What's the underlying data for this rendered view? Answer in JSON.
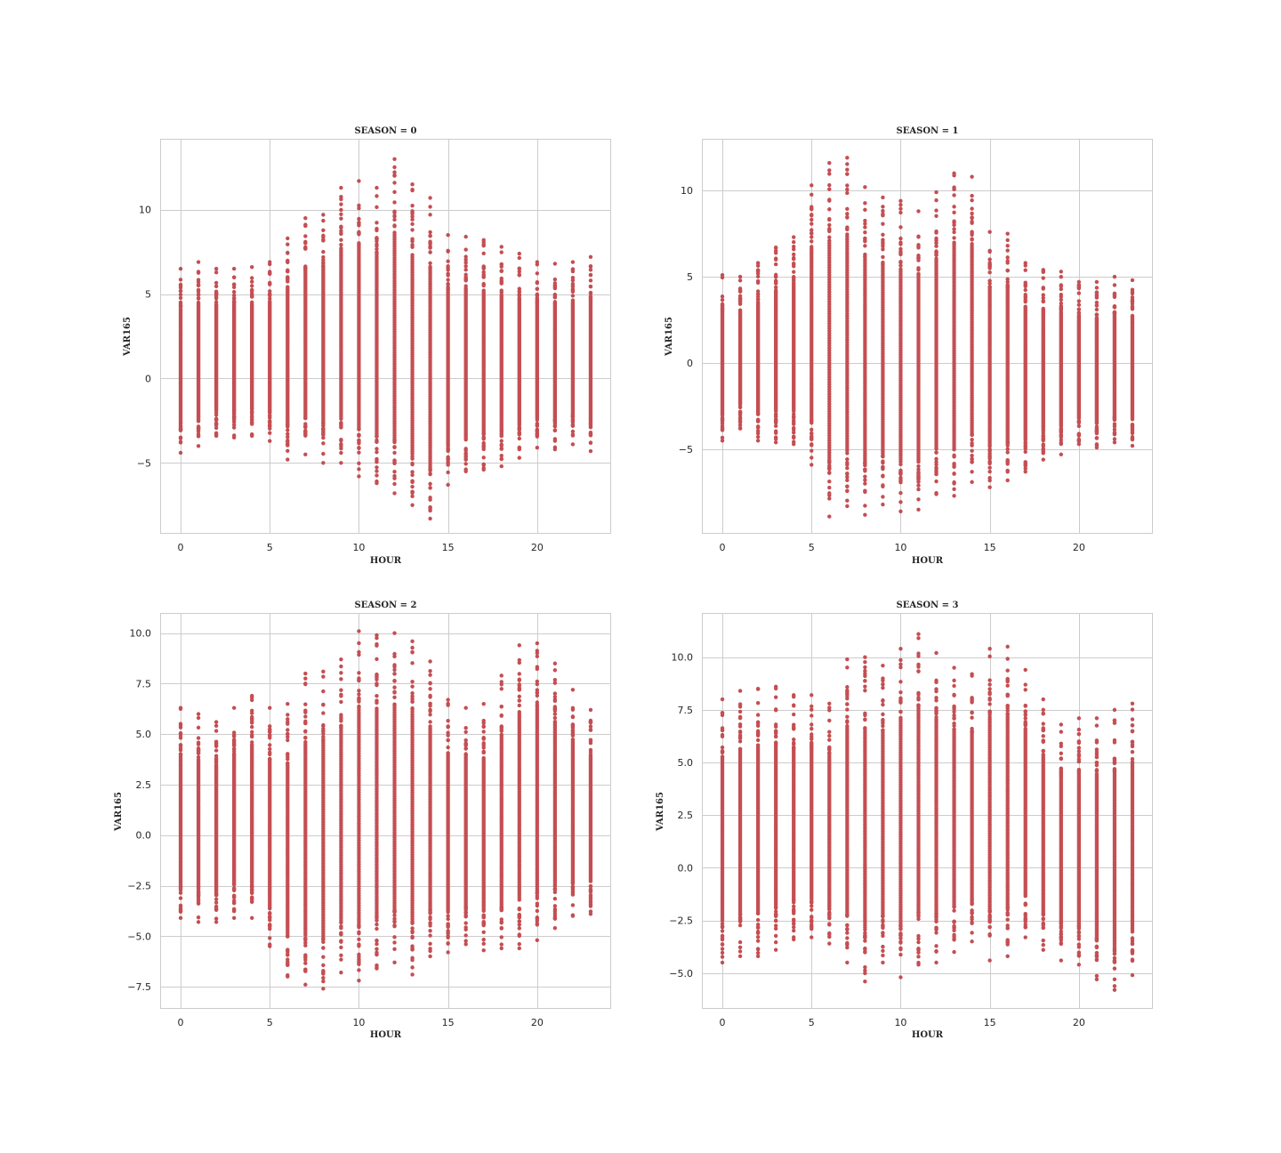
{
  "chart_data": [
    {
      "type": "scatter",
      "title": "SEASON = 0",
      "xlabel": "HOUR",
      "ylabel": "VAR165",
      "xlim": [
        -1.15,
        24.15
      ],
      "ylim": [
        -9.2,
        14.2
      ],
      "xticks": [
        0,
        5,
        10,
        15,
        20
      ],
      "xtick_labels": [
        "0",
        "5",
        "10",
        "15",
        "20"
      ],
      "yticks": [
        -5,
        0,
        5,
        10
      ],
      "ytick_labels": [
        "−5",
        "0",
        "5",
        "10"
      ],
      "grid": true,
      "marker_color": "#c44e52",
      "x": [
        0,
        1,
        2,
        3,
        4,
        5,
        6,
        7,
        8,
        9,
        10,
        11,
        12,
        13,
        14,
        15,
        16,
        17,
        18,
        19,
        20,
        21,
        22,
        23
      ],
      "y_min": [
        -4.4,
        -4.0,
        -3.4,
        -3.5,
        -3.4,
        -3.7,
        -4.8,
        -4.5,
        -5.0,
        -5.0,
        -5.8,
        -6.2,
        -6.8,
        -7.5,
        -8.3,
        -6.3,
        -5.5,
        -5.4,
        -5.2,
        -4.7,
        -4.1,
        -4.2,
        -3.9,
        -4.3
      ],
      "y_max": [
        6.5,
        6.9,
        6.5,
        6.5,
        6.6,
        6.9,
        8.3,
        9.5,
        9.7,
        11.3,
        11.7,
        11.3,
        13.0,
        11.5,
        10.7,
        8.5,
        8.4,
        8.2,
        7.8,
        7.4,
        6.9,
        6.8,
        6.9,
        7.2
      ]
    },
    {
      "type": "scatter",
      "title": "SEASON = 1",
      "xlabel": "HOUR",
      "ylabel": "VAR165",
      "xlim": [
        -1.15,
        24.15
      ],
      "ylim": [
        -9.9,
        13.0
      ],
      "xticks": [
        0,
        5,
        10,
        15,
        20
      ],
      "xtick_labels": [
        "0",
        "5",
        "10",
        "15",
        "20"
      ],
      "yticks": [
        -5,
        0,
        5,
        10
      ],
      "ytick_labels": [
        "−5",
        "0",
        "5",
        "10"
      ],
      "grid": true,
      "marker_color": "#c44e52",
      "x": [
        0,
        1,
        2,
        3,
        4,
        5,
        6,
        7,
        8,
        9,
        10,
        11,
        12,
        13,
        14,
        15,
        16,
        17,
        18,
        19,
        20,
        21,
        22,
        23
      ],
      "y_min": [
        -4.5,
        -3.8,
        -4.5,
        -4.6,
        -4.7,
        -5.9,
        -8.9,
        -8.3,
        -8.8,
        -8.2,
        -8.6,
        -8.5,
        -7.6,
        -7.7,
        -6.9,
        -7.2,
        -6.8,
        -6.3,
        -5.6,
        -5.3,
        -4.7,
        -4.9,
        -4.6,
        -4.8
      ],
      "y_max": [
        5.1,
        5.0,
        5.8,
        6.7,
        7.3,
        10.3,
        11.6,
        11.9,
        10.2,
        9.6,
        9.4,
        8.8,
        9.9,
        11.0,
        10.8,
        7.6,
        7.5,
        5.8,
        5.4,
        5.3,
        4.7,
        4.7,
        5.0,
        4.8
      ]
    },
    {
      "type": "scatter",
      "title": "SEASON = 2",
      "xlabel": "HOUR",
      "ylabel": "VAR165",
      "xlim": [
        -1.15,
        24.15
      ],
      "ylim": [
        -8.6,
        11.0
      ],
      "xticks": [
        0,
        5,
        10,
        15,
        20
      ],
      "xtick_labels": [
        "0",
        "5",
        "10",
        "15",
        "20"
      ],
      "yticks": [
        -7.5,
        -5.0,
        -2.5,
        0.0,
        2.5,
        5.0,
        7.5,
        10.0
      ],
      "ytick_labels": [
        "−7.5",
        "−5.0",
        "−2.5",
        "0.0",
        "2.5",
        "5.0",
        "7.5",
        "10.0"
      ],
      "grid": true,
      "marker_color": "#c44e52",
      "x": [
        0,
        1,
        2,
        3,
        4,
        5,
        6,
        7,
        8,
        9,
        10,
        11,
        12,
        13,
        14,
        15,
        16,
        17,
        18,
        19,
        20,
        21,
        22,
        23
      ],
      "y_min": [
        -4.1,
        -4.3,
        -4.3,
        -4.1,
        -4.1,
        -5.5,
        -7.0,
        -7.4,
        -7.6,
        -6.8,
        -7.2,
        -6.6,
        -6.3,
        -6.9,
        -6.0,
        -5.8,
        -5.4,
        -5.7,
        -5.6,
        -5.6,
        -5.2,
        -4.6,
        -4.0,
        -3.9
      ],
      "y_max": [
        6.3,
        6.0,
        5.6,
        6.3,
        6.9,
        6.3,
        6.5,
        8.0,
        8.1,
        8.7,
        10.1,
        9.9,
        10.0,
        9.6,
        8.6,
        6.7,
        6.3,
        6.5,
        7.9,
        9.4,
        9.5,
        8.5,
        7.2,
        6.2
      ]
    },
    {
      "type": "scatter",
      "title": "SEASON = 3",
      "xlabel": "HOUR",
      "ylabel": "VAR165",
      "xlim": [
        -1.15,
        24.15
      ],
      "ylim": [
        -6.7,
        12.1
      ],
      "xticks": [
        0,
        5,
        10,
        15,
        20
      ],
      "xtick_labels": [
        "0",
        "5",
        "10",
        "15",
        "20"
      ],
      "yticks": [
        -5.0,
        -2.5,
        0.0,
        2.5,
        5.0,
        7.5,
        10.0
      ],
      "ytick_labels": [
        "−5.0",
        "−2.5",
        "0.0",
        "2.5",
        "5.0",
        "7.5",
        "10.0"
      ],
      "grid": true,
      "marker_color": "#c44e52",
      "x": [
        0,
        1,
        2,
        3,
        4,
        5,
        6,
        7,
        8,
        9,
        10,
        11,
        12,
        13,
        14,
        15,
        16,
        17,
        18,
        19,
        20,
        21,
        22,
        23
      ],
      "y_min": [
        -4.5,
        -4.2,
        -4.2,
        -3.9,
        -3.4,
        -3.3,
        -3.6,
        -4.5,
        -5.4,
        -4.5,
        -5.2,
        -4.6,
        -4.5,
        -4.0,
        -3.5,
        -4.4,
        -4.2,
        -3.3,
        -3.9,
        -4.4,
        -4.6,
        -5.3,
        -5.8,
        -5.1
      ],
      "y_max": [
        8.0,
        8.4,
        8.5,
        8.6,
        8.2,
        8.2,
        7.8,
        9.9,
        10.0,
        9.6,
        10.4,
        11.1,
        10.2,
        9.5,
        9.2,
        10.4,
        10.5,
        9.4,
        8.0,
        6.8,
        7.1,
        7.1,
        7.5,
        7.8
      ]
    }
  ]
}
